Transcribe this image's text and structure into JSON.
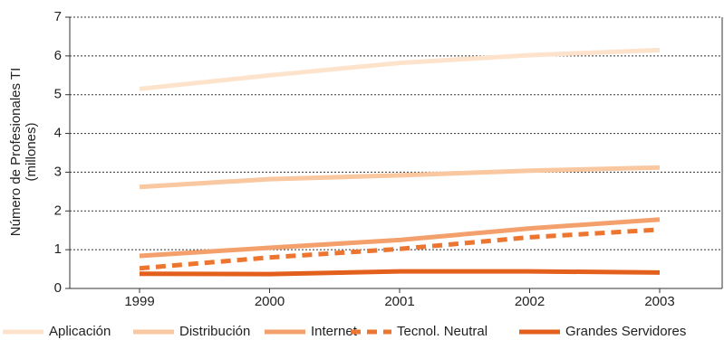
{
  "chart_data": {
    "type": "line",
    "ylabel": "Número de Profesionales TI",
    "ylabel_sub": "(millones)",
    "x": [
      "1999",
      "2000",
      "2001",
      "2002",
      "2003"
    ],
    "ylim": [
      0,
      7
    ],
    "yticks": [
      "0",
      "1",
      "2",
      "3",
      "4",
      "5",
      "6",
      "7"
    ],
    "grid": "horizontal dotted",
    "legend_position": "bottom",
    "series": [
      {
        "name": "Aplicación",
        "values": [
          5.15,
          5.5,
          5.82,
          6.02,
          6.15
        ],
        "color": "#fde3cc",
        "style": "solid"
      },
      {
        "name": "Distribución",
        "values": [
          2.62,
          2.82,
          2.92,
          3.04,
          3.12
        ],
        "color": "#f9c7a0",
        "style": "solid"
      },
      {
        "name": "Internet",
        "values": [
          0.84,
          1.05,
          1.25,
          1.55,
          1.78
        ],
        "color": "#f3a06c",
        "style": "solid"
      },
      {
        "name": "Tecnol. Neutral",
        "values": [
          0.52,
          0.8,
          1.02,
          1.32,
          1.52
        ],
        "color": "#ec7530",
        "style": "dashed"
      },
      {
        "name": "Grandes Servidores",
        "values": [
          0.38,
          0.37,
          0.44,
          0.44,
          0.41
        ],
        "color": "#e35f1c",
        "style": "solid"
      }
    ]
  }
}
